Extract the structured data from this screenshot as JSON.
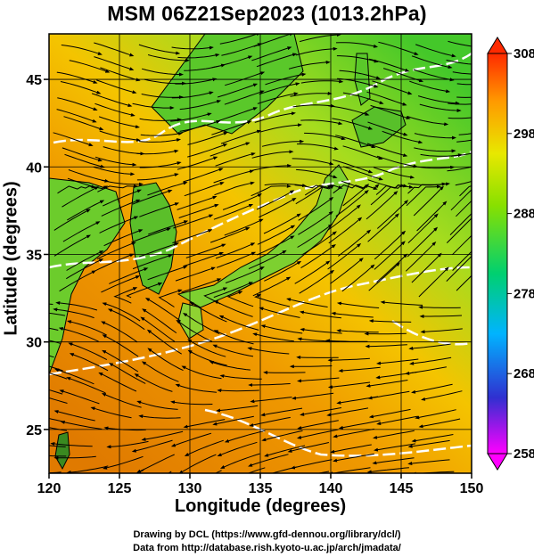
{
  "title": "MSM 06Z21Sep2023 (1013.2hPa)",
  "axes": {
    "xlabel": "Longitude (degrees)",
    "ylabel": "Latitude  (degrees)",
    "xticks": [
      "120",
      "125",
      "130",
      "135",
      "140",
      "145",
      "150"
    ],
    "yticks": [
      "25",
      "30",
      "35",
      "40",
      "45"
    ]
  },
  "colorbar": {
    "labels": [
      "308",
      "298",
      "288",
      "278",
      "268",
      "258"
    ],
    "min": 258,
    "max": 308,
    "colors": [
      "#ff00ff",
      "#2a2ad8",
      "#00c8ff",
      "#00d060",
      "#7ee000",
      "#e8e800",
      "#ff9a00",
      "#ff2a00"
    ]
  },
  "credits": {
    "line1": "Drawing by DCL (https://www.gfd-dennou.org/library/dcl/)",
    "line2": "Data from http://database.rish.kyoto-u.ac.jp/arch/jmadata/"
  },
  "map": {
    "lon_range": [
      120,
      150
    ],
    "lat_range": [
      22.5,
      47.6
    ],
    "field": "temperature (K) with streamlines and white contours",
    "colors": {
      "warm": "#ee8800",
      "mid": "#f4c000",
      "cool": "#66d028",
      "land": "#3a8a20"
    }
  }
}
